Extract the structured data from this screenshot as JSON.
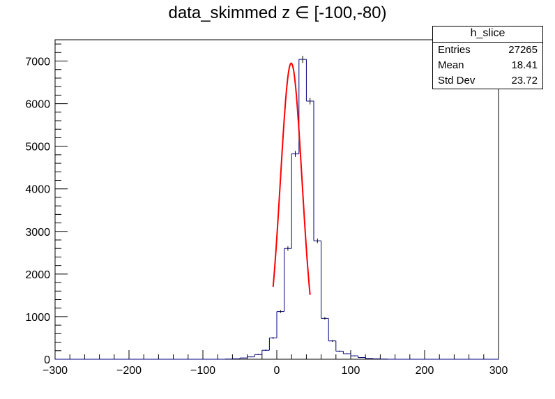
{
  "chart_data": {
    "type": "bar",
    "title": "data_skimmed z  ∈ [-100,-80)",
    "xlabel": "",
    "ylabel": "",
    "xlim": [
      -300,
      300
    ],
    "ylim": [
      0,
      7500
    ],
    "x_ticks": [
      -300,
      -200,
      -100,
      0,
      100,
      200,
      300
    ],
    "y_ticks": [
      0,
      1000,
      2000,
      3000,
      4000,
      5000,
      6000,
      7000
    ],
    "bin_width": 10,
    "bin_edges_start": -300,
    "values": [
      0,
      0,
      0,
      0,
      0,
      0,
      0,
      0,
      0,
      0,
      0,
      0,
      0,
      0,
      0,
      0,
      0,
      0,
      0,
      0,
      0,
      0,
      0,
      5,
      10,
      30,
      55,
      110,
      210,
      500,
      1120,
      2600,
      4820,
      7040,
      6060,
      2780,
      960,
      430,
      190,
      130,
      80,
      40,
      20,
      10,
      5,
      0,
      0,
      0,
      0,
      0,
      0,
      0,
      0,
      0,
      0,
      0,
      0,
      0,
      0,
      0
    ],
    "fit": {
      "type": "gaussian",
      "amplitude": 6950,
      "mean": 19.5,
      "sigma": 14.6,
      "range": [
        -5,
        45
      ]
    },
    "colors": {
      "histogram": "#000080",
      "fit": "#ff0000",
      "axis": "#000000"
    },
    "grid": false,
    "legend_placement": "top-right"
  },
  "stats": {
    "name": "h_slice",
    "rows": [
      {
        "label": "Entries",
        "value": "27265"
      },
      {
        "label": "Mean",
        "value": "18.41"
      },
      {
        "label": "Std Dev",
        "value": "23.72"
      }
    ]
  }
}
